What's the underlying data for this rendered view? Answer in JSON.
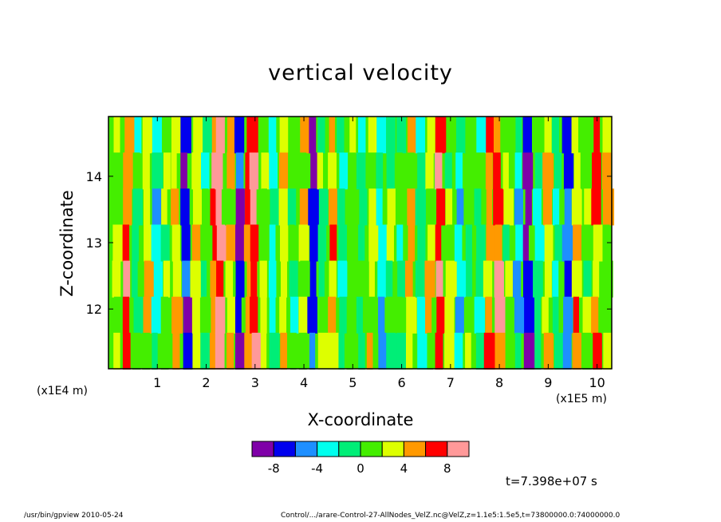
{
  "chart_data": {
    "type": "heatmap",
    "title": "vertical velocity",
    "xlabel": "X-coordinate",
    "ylabel": "Z-coordinate",
    "x_unit_left": "(x1E4 m)",
    "x_unit_right": "(x1E5 m)",
    "xlim": [
      0,
      10.3
    ],
    "ylim": [
      11.1,
      14.9
    ],
    "x_ticks": [
      1,
      2,
      3,
      4,
      5,
      6,
      7,
      8,
      9,
      10
    ],
    "x_tick_labels": [
      "1",
      "2",
      "3",
      "4",
      "5",
      "6",
      "7",
      "8",
      "9",
      "10"
    ],
    "y_ticks": [
      12,
      13,
      14
    ],
    "y_tick_labels": [
      "12",
      "13",
      "14"
    ],
    "colorbar": {
      "colors": [
        "#7f00a8",
        "#0000ee",
        "#1e8fff",
        "#00ffee",
        "#00ee77",
        "#44ee00",
        "#ddff00",
        "#ff9900",
        "#ff0000",
        "#ff9999"
      ],
      "tick_values": [
        -8,
        -4,
        0,
        4,
        8
      ],
      "tick_labels": [
        "-8",
        "-4",
        "0",
        "4",
        "8"
      ],
      "value_range": [
        -10,
        10
      ]
    },
    "field_description": "Vertically streaked velocity field; strong downward (blue) streaks near x≈1.6, 2.7, 8.5, 9.3; strong upward (red/white) streaks near x≈2.3, 3.0, 6.8.",
    "columns": [
      {
        "x": 0.2,
        "v": 2
      },
      {
        "x": 0.4,
        "v": 6
      },
      {
        "x": 0.6,
        "v": -2
      },
      {
        "x": 0.8,
        "v": 3
      },
      {
        "x": 1.0,
        "v": -3
      },
      {
        "x": 1.2,
        "v": 1
      },
      {
        "x": 1.4,
        "v": 4
      },
      {
        "x": 1.6,
        "v": -7
      },
      {
        "x": 1.8,
        "v": 2
      },
      {
        "x": 2.0,
        "v": -1
      },
      {
        "x": 2.2,
        "v": 6
      },
      {
        "x": 2.3,
        "v": 9
      },
      {
        "x": 2.5,
        "v": 3
      },
      {
        "x": 2.7,
        "v": -8
      },
      {
        "x": 2.9,
        "v": 5
      },
      {
        "x": 3.0,
        "v": 8
      },
      {
        "x": 3.2,
        "v": 1
      },
      {
        "x": 3.4,
        "v": -2
      },
      {
        "x": 3.6,
        "v": 3
      },
      {
        "x": 3.8,
        "v": -1
      },
      {
        "x": 4.0,
        "v": 2
      },
      {
        "x": 4.2,
        "v": -7
      },
      {
        "x": 4.4,
        "v": 0
      },
      {
        "x": 4.6,
        "v": 4
      },
      {
        "x": 4.8,
        "v": -3
      },
      {
        "x": 5.0,
        "v": 1
      },
      {
        "x": 5.2,
        "v": -2
      },
      {
        "x": 5.4,
        "v": 2
      },
      {
        "x": 5.6,
        "v": -4
      },
      {
        "x": 5.8,
        "v": 1
      },
      {
        "x": 6.0,
        "v": -1
      },
      {
        "x": 6.2,
        "v": 3
      },
      {
        "x": 6.4,
        "v": -2
      },
      {
        "x": 6.6,
        "v": 2
      },
      {
        "x": 6.8,
        "v": 7
      },
      {
        "x": 7.0,
        "v": 1
      },
      {
        "x": 7.2,
        "v": -3
      },
      {
        "x": 7.4,
        "v": 0
      },
      {
        "x": 7.6,
        "v": -1
      },
      {
        "x": 7.8,
        "v": 4
      },
      {
        "x": 8.0,
        "v": 6
      },
      {
        "x": 8.2,
        "v": 1
      },
      {
        "x": 8.4,
        "v": -4
      },
      {
        "x": 8.6,
        "v": -8
      },
      {
        "x": 8.8,
        "v": -2
      },
      {
        "x": 9.0,
        "v": 3
      },
      {
        "x": 9.2,
        "v": -1
      },
      {
        "x": 9.4,
        "v": -7
      },
      {
        "x": 9.6,
        "v": 4
      },
      {
        "x": 9.8,
        "v": 1
      },
      {
        "x": 10.0,
        "v": 5
      },
      {
        "x": 10.2,
        "v": 2
      }
    ]
  },
  "time_label": "t=7.398e+07 s",
  "footer_left": "/usr/bin/gpview   2010-05-24",
  "footer_right": "Control/.../arare-Control-27-AllNodes_VelZ.nc@VelZ,z=1.1e5:1.5e5,t=73800000.0:74000000.0"
}
